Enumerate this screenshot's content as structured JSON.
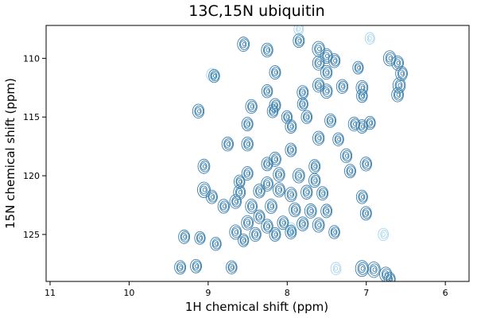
{
  "chart_data": {
    "type": "contour",
    "title": "13C,15N ubiquitin",
    "xlabel": "1H chemical shift (ppm)",
    "ylabel": "15N chemical shift (ppm)",
    "xlim": [
      11.05,
      5.7
    ],
    "ylim": [
      129.0,
      107.2
    ],
    "x_ticks": [
      11,
      10,
      9,
      8,
      7,
      6
    ],
    "y_ticks": [
      110,
      115,
      120,
      125
    ],
    "x_inverted": true,
    "y_inverted": true,
    "grid": false,
    "colors": {
      "positive": "#3a7fae",
      "negative": "#a7d5ee"
    },
    "peaks": [
      [
        8.55,
        108.8,
        0.6
      ],
      [
        8.25,
        109.3,
        0.55
      ],
      [
        7.85,
        108.5,
        0.5
      ],
      [
        7.6,
        109.2,
        0.7
      ],
      [
        7.5,
        109.8,
        0.65
      ],
      [
        7.6,
        110.4,
        0.6
      ],
      [
        7.4,
        110.2,
        0.55
      ],
      [
        6.7,
        110.0,
        0.7
      ],
      [
        6.6,
        110.4,
        0.6
      ],
      [
        6.55,
        111.3,
        0.6
      ],
      [
        6.58,
        112.3,
        0.7
      ],
      [
        6.6,
        113.1,
        0.6
      ],
      [
        8.92,
        111.5,
        0.45
      ],
      [
        8.15,
        111.2,
        0.5
      ],
      [
        7.5,
        111.2,
        0.55
      ],
      [
        7.1,
        110.8,
        0.4
      ],
      [
        8.25,
        112.8,
        0.45
      ],
      [
        7.8,
        112.9,
        0.5
      ],
      [
        7.6,
        112.3,
        0.55
      ],
      [
        7.5,
        112.8,
        0.6
      ],
      [
        7.3,
        112.4,
        0.55
      ],
      [
        7.05,
        112.5,
        0.6
      ],
      [
        7.05,
        113.2,
        0.45
      ],
      [
        8.45,
        114.1,
        0.55
      ],
      [
        8.15,
        114.0,
        0.5
      ],
      [
        8.18,
        114.5,
        0.45
      ],
      [
        9.12,
        114.5,
        0.55
      ],
      [
        8.0,
        115.0,
        0.4
      ],
      [
        7.75,
        115.0,
        0.45
      ],
      [
        7.45,
        115.3,
        0.5
      ],
      [
        7.15,
        115.6,
        0.55
      ],
      [
        7.05,
        115.8,
        0.5
      ],
      [
        6.95,
        115.5,
        0.45
      ],
      [
        7.95,
        115.8,
        0.5
      ],
      [
        8.5,
        115.6,
        0.5
      ],
      [
        7.8,
        113.9,
        0.4
      ],
      [
        7.6,
        116.8,
        0.55
      ],
      [
        7.35,
        116.9,
        0.45
      ],
      [
        8.75,
        117.3,
        0.55
      ],
      [
        8.5,
        117.3,
        0.55
      ],
      [
        7.95,
        117.8,
        0.5
      ],
      [
        7.25,
        118.3,
        0.55
      ],
      [
        8.15,
        118.6,
        0.6
      ],
      [
        8.25,
        119.0,
        0.5
      ],
      [
        9.05,
        119.2,
        0.6
      ],
      [
        7.65,
        119.2,
        0.5
      ],
      [
        7.2,
        119.6,
        0.5
      ],
      [
        7.0,
        119.0,
        0.55
      ],
      [
        8.5,
        119.8,
        0.5
      ],
      [
        8.1,
        119.9,
        0.55
      ],
      [
        7.85,
        120.0,
        0.6
      ],
      [
        7.65,
        120.4,
        0.55
      ],
      [
        8.25,
        120.7,
        0.6
      ],
      [
        8.6,
        120.5,
        0.45
      ],
      [
        9.05,
        121.2,
        0.75
      ],
      [
        8.95,
        121.8,
        0.5
      ],
      [
        8.6,
        121.4,
        0.6
      ],
      [
        8.35,
        121.3,
        0.55
      ],
      [
        8.1,
        121.2,
        0.6
      ],
      [
        7.95,
        121.6,
        0.6
      ],
      [
        7.75,
        121.4,
        0.55
      ],
      [
        7.55,
        121.5,
        0.5
      ],
      [
        7.05,
        121.8,
        0.5
      ],
      [
        8.65,
        122.2,
        0.55
      ],
      [
        8.8,
        122.6,
        0.55
      ],
      [
        8.45,
        122.6,
        0.6
      ],
      [
        8.2,
        122.6,
        0.6
      ],
      [
        7.9,
        122.9,
        0.55
      ],
      [
        7.7,
        123.0,
        0.6
      ],
      [
        7.5,
        123.0,
        0.5
      ],
      [
        8.35,
        123.5,
        0.5
      ],
      [
        7.0,
        123.2,
        0.5
      ],
      [
        8.5,
        124.0,
        0.6
      ],
      [
        8.25,
        124.3,
        0.55
      ],
      [
        8.05,
        124.0,
        0.5
      ],
      [
        7.8,
        124.1,
        0.55
      ],
      [
        7.6,
        124.2,
        0.6
      ],
      [
        8.65,
        124.8,
        0.6
      ],
      [
        8.4,
        125.0,
        0.55
      ],
      [
        8.15,
        125.0,
        0.5
      ],
      [
        7.95,
        124.8,
        0.5
      ],
      [
        7.4,
        124.8,
        0.45
      ],
      [
        8.55,
        125.5,
        0.4
      ],
      [
        9.3,
        125.2,
        0.5
      ],
      [
        9.1,
        125.3,
        0.4
      ],
      [
        8.9,
        125.8,
        0.45
      ],
      [
        9.35,
        127.8,
        0.5
      ],
      [
        9.15,
        127.7,
        0.5
      ],
      [
        8.7,
        127.8,
        0.45
      ],
      [
        7.05,
        127.9,
        0.8
      ],
      [
        6.9,
        128.0,
        0.75
      ],
      [
        6.75,
        128.4,
        0.65
      ],
      [
        6.7,
        128.8,
        0.5
      ]
    ],
    "negative_peaks": [
      [
        8.95,
        111.4,
        0.4
      ],
      [
        7.38,
        127.9,
        0.35
      ],
      [
        6.78,
        125.0,
        0.35
      ],
      [
        7.95,
        124.5,
        0.3
      ],
      [
        6.95,
        108.3,
        0.25
      ],
      [
        7.85,
        107.5,
        0.25
      ]
    ]
  }
}
